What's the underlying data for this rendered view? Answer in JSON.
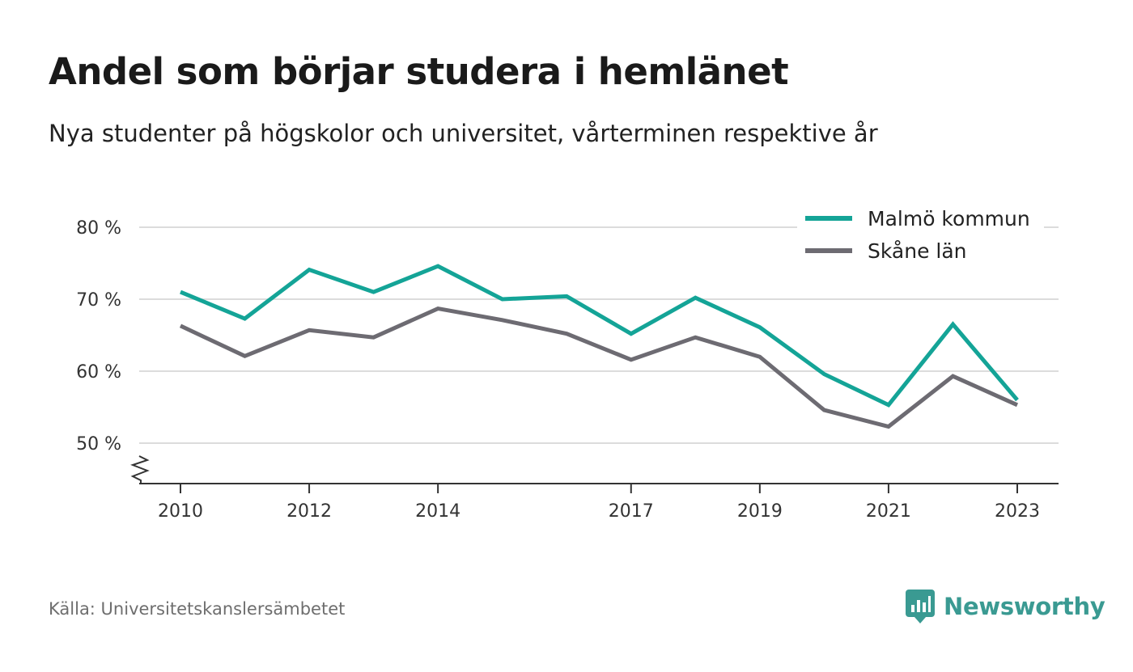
{
  "title": "Andel som börjar studera i hemlänet",
  "subtitle": "Nya studenter på högskolor och universitet, vårterminen respektive år",
  "source": "Källa: Universitetskanslersämbetet",
  "brand": "Newsworthy",
  "brand_icon": "newsworthy-logo-icon",
  "chart_data": {
    "type": "line",
    "x": [
      2010,
      2011,
      2012,
      2013,
      2014,
      2015,
      2016,
      2017,
      2018,
      2019,
      2020,
      2021,
      2022,
      2023
    ],
    "xticks": [
      "2010",
      "2012",
      "2014",
      "2017",
      "2019",
      "2021",
      "2023"
    ],
    "yticks": [
      "50 %",
      "60 %",
      "70 %",
      "80 %"
    ],
    "ylim": [
      44.5,
      80
    ],
    "grid": true,
    "axis_break": true,
    "legend_position": "top-right",
    "series": [
      {
        "name": "Malmö kommun",
        "color": "#14a497",
        "values": [
          71.0,
          67.3,
          74.1,
          71.0,
          74.6,
          70.0,
          70.4,
          65.2,
          70.2,
          66.1,
          59.6,
          55.3,
          66.5,
          56.0
        ]
      },
      {
        "name": "Skåne län",
        "color": "#6d6b72",
        "values": [
          66.3,
          62.1,
          65.7,
          64.7,
          68.7,
          67.1,
          65.2,
          61.6,
          64.7,
          62.0,
          54.6,
          52.3,
          59.3,
          55.3
        ]
      }
    ]
  }
}
